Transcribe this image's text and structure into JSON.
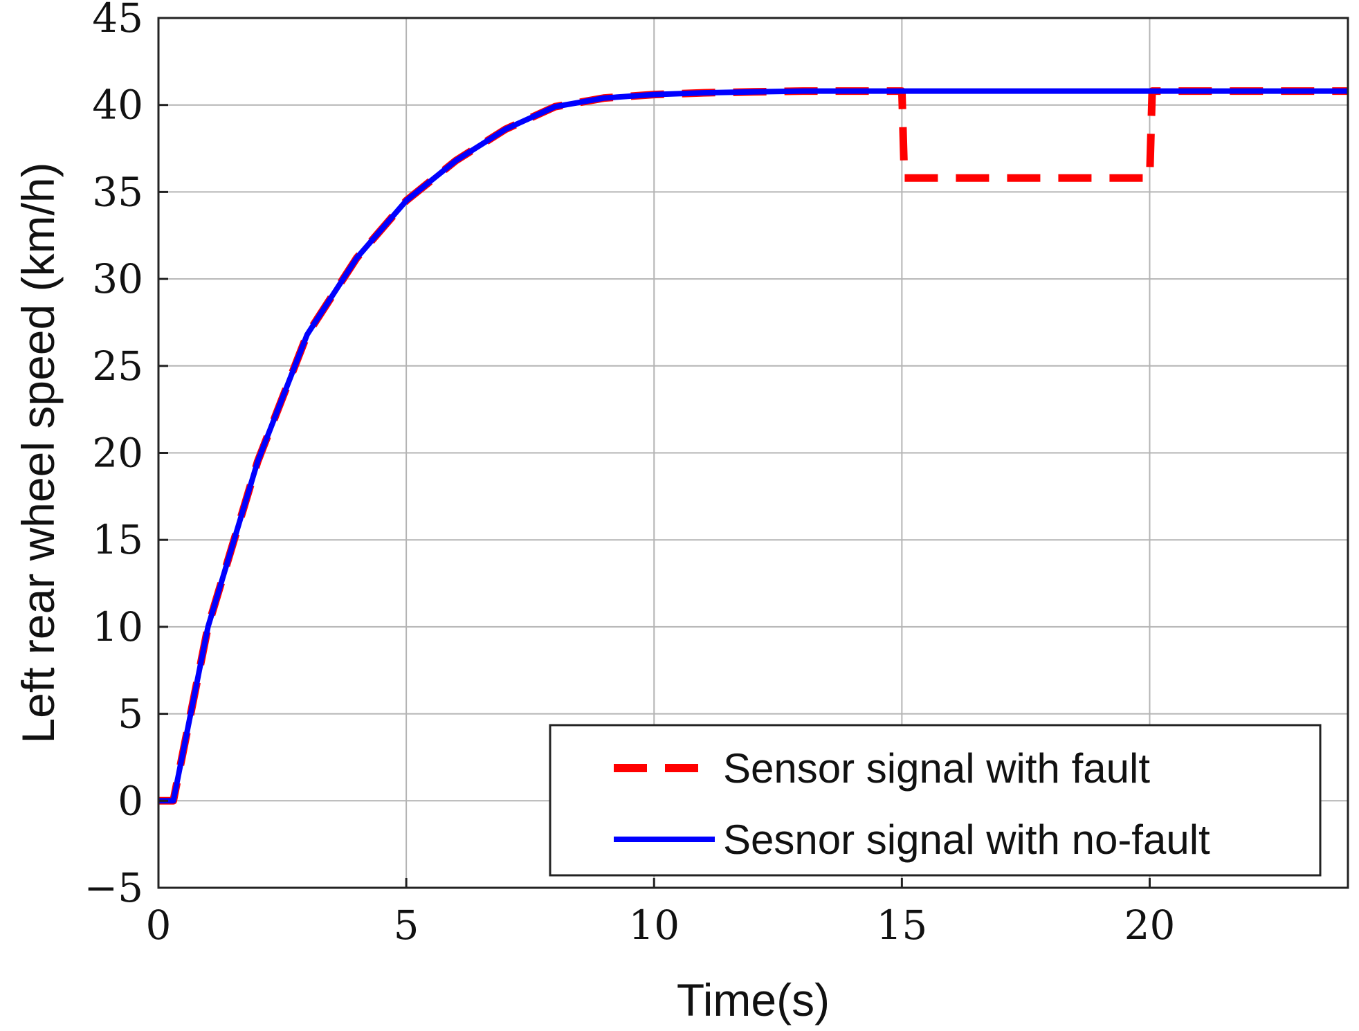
{
  "chart_data": {
    "type": "line",
    "title": "",
    "xlabel": "Time(s)",
    "ylabel": "Left rear wheel speed (km/h)",
    "xlim": [
      0,
      24
    ],
    "ylim": [
      -5,
      45
    ],
    "xticks": [
      0,
      5,
      10,
      15,
      20
    ],
    "yticks": [
      -5,
      0,
      5,
      10,
      15,
      20,
      25,
      30,
      35,
      40,
      45
    ],
    "xtick_labels": [
      "0",
      "5",
      "10",
      "15",
      "20"
    ],
    "ytick_labels": [
      "−5",
      "0",
      "5",
      "10",
      "15",
      "20",
      "25",
      "30",
      "35",
      "40",
      "45"
    ],
    "grid": true,
    "legend": {
      "position": "bottom-right"
    },
    "series": [
      {
        "name": "Sensor signal with fault",
        "color": "#ff0000",
        "style": "dashed",
        "x": [
          0,
          0.3,
          1,
          2,
          3,
          4,
          5,
          6,
          7,
          8,
          9,
          10,
          11,
          12,
          13,
          14,
          15,
          15.05,
          20,
          20.05,
          21,
          22,
          23,
          24
        ],
        "y": [
          0,
          0,
          10,
          19.5,
          26.8,
          31.2,
          34.5,
          36.8,
          38.6,
          39.9,
          40.4,
          40.6,
          40.7,
          40.75,
          40.8,
          40.8,
          40.8,
          35.8,
          35.8,
          40.8,
          40.8,
          40.8,
          40.8,
          40.8
        ]
      },
      {
        "name": "Sesnor signal with no-fault",
        "color": "#0000ff",
        "style": "solid",
        "x": [
          0,
          0.3,
          1,
          2,
          3,
          4,
          5,
          6,
          7,
          8,
          9,
          10,
          11,
          12,
          13,
          14,
          15,
          16,
          17,
          18,
          19,
          20,
          21,
          22,
          23,
          24
        ],
        "y": [
          0,
          0,
          10,
          19.5,
          26.8,
          31.2,
          34.5,
          36.8,
          38.6,
          39.9,
          40.4,
          40.6,
          40.7,
          40.75,
          40.8,
          40.8,
          40.8,
          40.8,
          40.8,
          40.8,
          40.8,
          40.8,
          40.8,
          40.8,
          40.8,
          40.8
        ]
      }
    ]
  }
}
